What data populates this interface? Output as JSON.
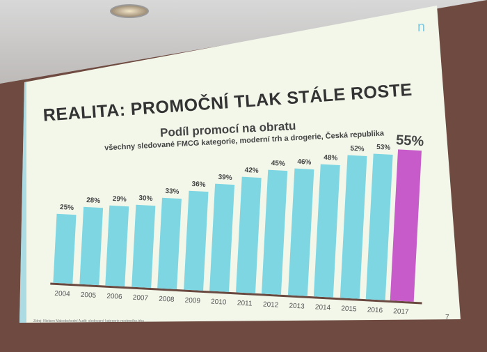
{
  "slide": {
    "title": "REALITA: PROMOČNÍ TLAK STÁLE ROSTE",
    "page_number": "7",
    "source": "Zdroj: Nielsen Maloobchodní Audit; sledované kategorie moderního trhu",
    "logo": "n"
  },
  "chart_data": {
    "type": "bar",
    "title": "Podíl promocí na obratu",
    "subtitle": "všechny sledované FMCG kategorie, moderní trh a drogerie, Česká republika",
    "categories": [
      "2004",
      "2005",
      "2006",
      "2007",
      "2008",
      "2009",
      "2010",
      "2011",
      "2012",
      "2013",
      "2014",
      "2015",
      "2016",
      "2017"
    ],
    "values": [
      25,
      28,
      29,
      30,
      33,
      36,
      39,
      42,
      45,
      46,
      48,
      52,
      53,
      55
    ],
    "data_labels": [
      "25%",
      "28%",
      "29%",
      "30%",
      "33%",
      "36%",
      "39%",
      "42%",
      "45%",
      "46%",
      "48%",
      "52%",
      "53%",
      "55%"
    ],
    "colors": {
      "default": "#7fd6e3",
      "highlight": "#c65bc9"
    },
    "highlight_category": "2017",
    "grid": false
  }
}
